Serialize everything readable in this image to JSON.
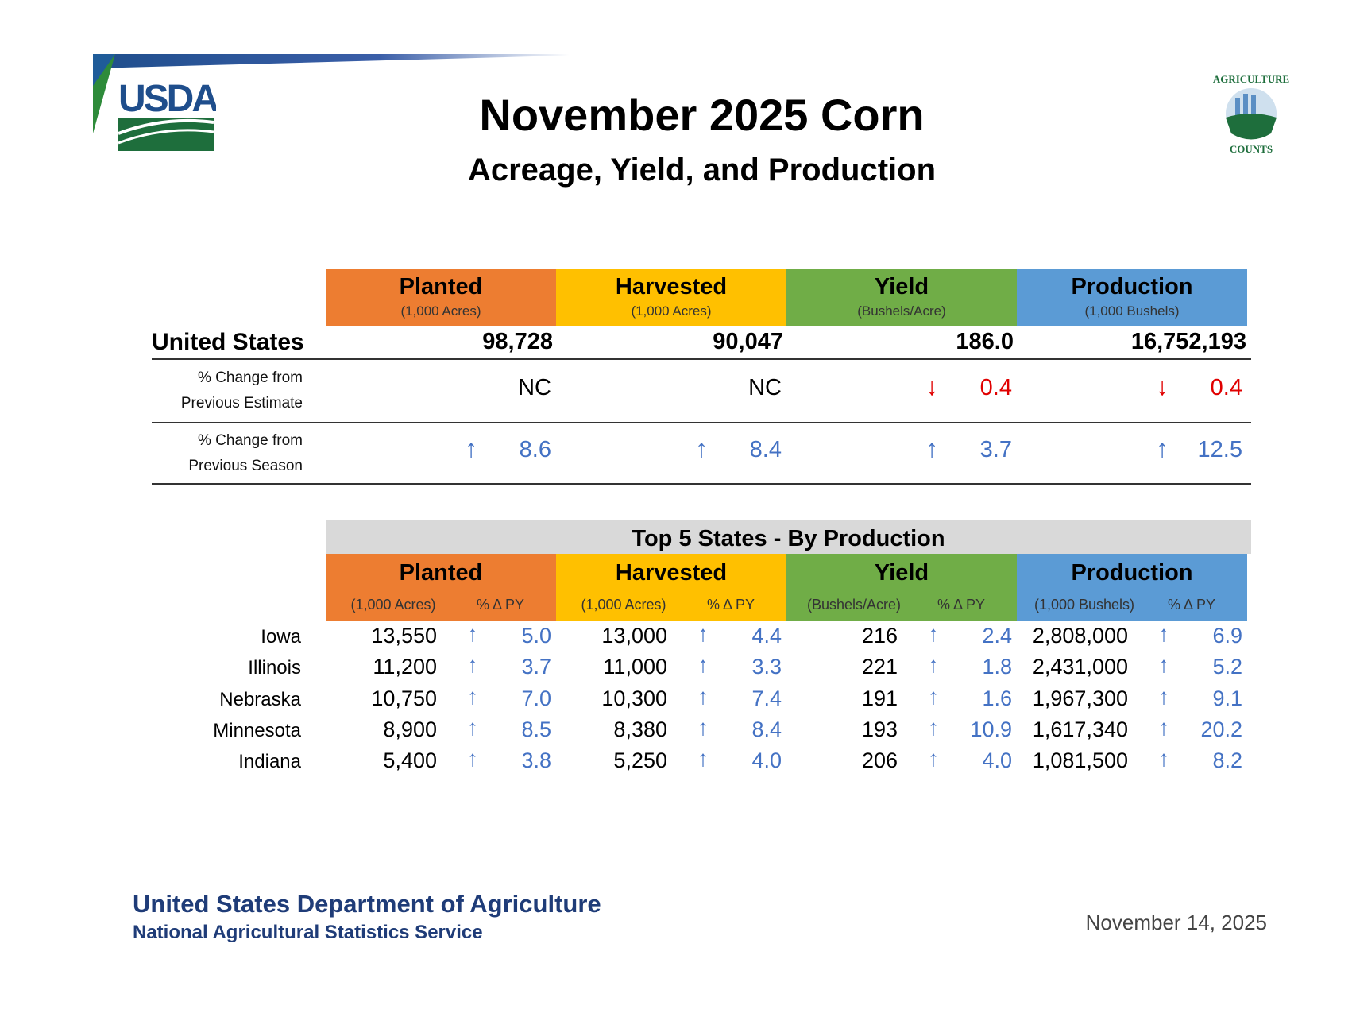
{
  "title": "November 2025 Corn",
  "subtitle": "Acreage, Yield, and Production",
  "logos": {
    "usda": "USDA",
    "agriculture_counts": "AGRICULTURE COUNTS"
  },
  "columns": [
    {
      "label": "Planted",
      "unit": "(1,000 Acres)",
      "color": "#ed7d31"
    },
    {
      "label": "Harvested",
      "unit": "(1,000 Acres)",
      "color": "#ffc000"
    },
    {
      "label": "Yield",
      "unit": "(Bushels/Acre)",
      "color": "#70ad47"
    },
    {
      "label": "Production",
      "unit": "(1,000 Bushels)",
      "color": "#5b9bd5"
    }
  ],
  "us": {
    "label": "United States",
    "values": [
      "98,728",
      "90,047",
      "186.0",
      "16,752,193"
    ],
    "prev_estimate": {
      "label_line1": "% Change from",
      "label_line2": "Previous Estimate",
      "cells": [
        {
          "dir": "",
          "value": "NC"
        },
        {
          "dir": "",
          "value": "NC"
        },
        {
          "dir": "down",
          "value": "0.4"
        },
        {
          "dir": "down",
          "value": "0.4"
        }
      ]
    },
    "prev_season": {
      "label_line1": "% Change from",
      "label_line2": "Previous Season",
      "cells": [
        {
          "dir": "up",
          "value": "8.6"
        },
        {
          "dir": "up",
          "value": "8.4"
        },
        {
          "dir": "up",
          "value": "3.7"
        },
        {
          "dir": "up",
          "value": "12.5"
        }
      ]
    }
  },
  "top5": {
    "title": "Top 5 States - By Production",
    "pct_label": "% Δ PY",
    "states": [
      {
        "name": "Iowa",
        "cells": [
          [
            "13,550",
            "5.0"
          ],
          [
            "13,000",
            "4.4"
          ],
          [
            "216",
            "2.4"
          ],
          [
            "2,808,000",
            "6.9"
          ]
        ]
      },
      {
        "name": "Illinois",
        "cells": [
          [
            "11,200",
            "3.7"
          ],
          [
            "11,000",
            "3.3"
          ],
          [
            "221",
            "1.8"
          ],
          [
            "2,431,000",
            "5.2"
          ]
        ]
      },
      {
        "name": "Nebraska",
        "cells": [
          [
            "10,750",
            "7.0"
          ],
          [
            "10,300",
            "7.4"
          ],
          [
            "191",
            "1.6"
          ],
          [
            "1,967,300",
            "9.1"
          ]
        ]
      },
      {
        "name": "Minnesota",
        "cells": [
          [
            "8,900",
            "8.5"
          ],
          [
            "8,380",
            "8.4"
          ],
          [
            "193",
            "10.9"
          ],
          [
            "1,617,340",
            "20.2"
          ]
        ]
      },
      {
        "name": "Indiana",
        "cells": [
          [
            "5,400",
            "3.8"
          ],
          [
            "5,250",
            "4.0"
          ],
          [
            "206",
            "4.0"
          ],
          [
            "1,081,500",
            "8.2"
          ]
        ]
      }
    ]
  },
  "footer": {
    "org": "United States Department of Agriculture",
    "service": "National Agricultural Statistics Service",
    "date": "November 14, 2025"
  }
}
